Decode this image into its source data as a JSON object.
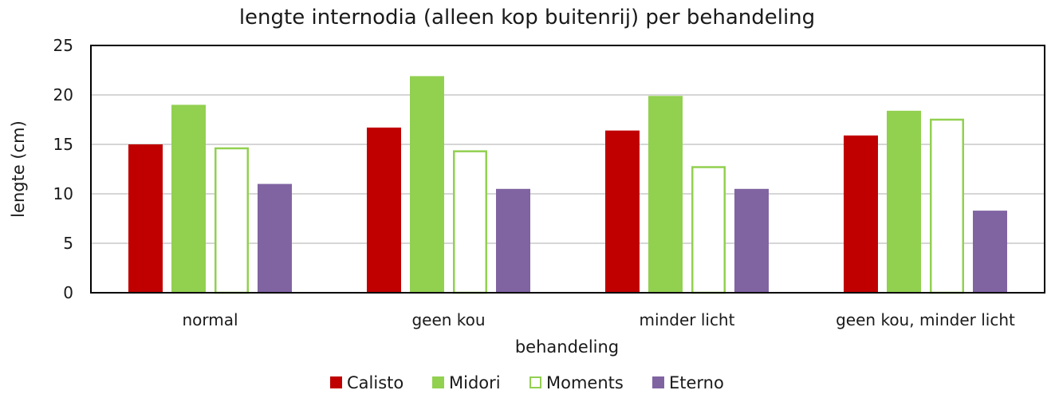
{
  "chart_data": {
    "type": "bar",
    "title": "lengte internodia (alleen kop buitenrij) per behandeling",
    "xlabel": "behandeling",
    "ylabel": "lengte (cm)",
    "ylim": [
      0,
      25
    ],
    "yticks": [
      0,
      5,
      10,
      15,
      20,
      25
    ],
    "grid": true,
    "legend_position": "bottom",
    "categories": [
      "normal",
      "geen kou",
      "minder licht",
      "geen kou, minder licht"
    ],
    "series": [
      {
        "name": "Calisto",
        "values": [
          15.0,
          16.7,
          16.4,
          15.9
        ],
        "color": "#c00000",
        "style": "filled"
      },
      {
        "name": "Midori",
        "values": [
          19.0,
          21.9,
          19.9,
          18.4
        ],
        "color": "#92d050",
        "style": "filled"
      },
      {
        "name": "Moments",
        "values": [
          14.7,
          14.4,
          12.8,
          17.6
        ],
        "color": "#92d050",
        "style": "outline"
      },
      {
        "name": "Eterno",
        "values": [
          11.0,
          10.5,
          10.5,
          8.3
        ],
        "color": "#8064a2",
        "style": "filled"
      }
    ]
  }
}
